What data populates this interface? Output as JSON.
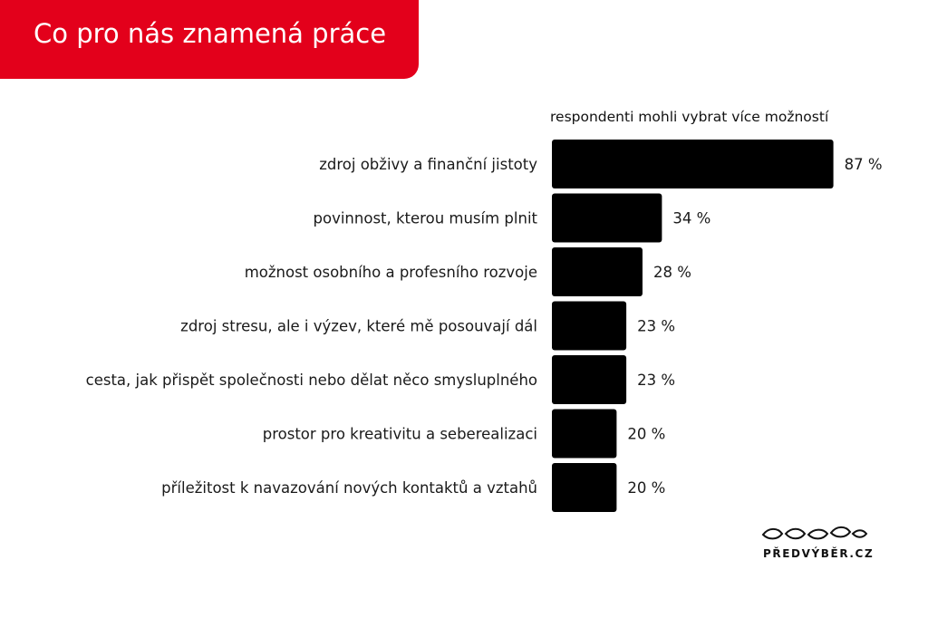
{
  "header": {
    "title": "Co pro nás znamená práce"
  },
  "note": "respondenti mohli vybrat více možností",
  "brand": {
    "name": "PŘEDVÝBĚR.CZ",
    "accent_color": "#e3001b",
    "bar_color": "#000000"
  },
  "chart_data": {
    "type": "bar",
    "orientation": "horizontal",
    "categories": [
      "zdroj obživy a finanční jistoty",
      "povinnost, kterou musím plnit",
      "možnost osobního a profesního rozvoje",
      "zdroj stresu, ale i výzev, které mě posouvají dál",
      "cesta, jak přispět společnosti nebo dělat něco smysluplného",
      "prostor pro kreativitu a seberealizaci",
      "příležitost k navazování nových kontaktů a vztahů"
    ],
    "values": [
      87,
      34,
      28,
      23,
      23,
      20,
      20
    ],
    "value_labels": [
      "87 %",
      "34 %",
      "28 %",
      "23 %",
      "23 %",
      "20 %",
      "20 %"
    ],
    "unit": "%",
    "xlim": [
      0,
      100
    ],
    "grid": false,
    "legend": false
  }
}
